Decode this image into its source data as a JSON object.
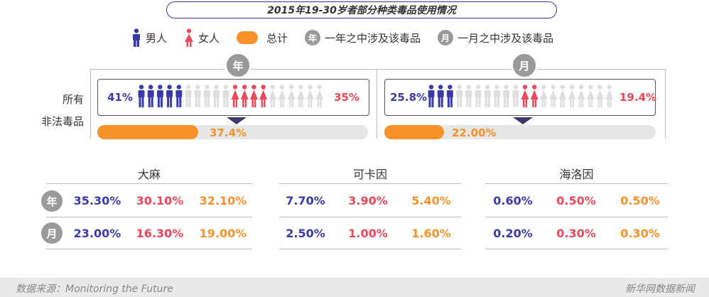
{
  "title": "2015年19-30岁者部分种类毒品使用情况",
  "legend": {
    "male": "男人",
    "female": "女人",
    "total": "总计",
    "year_badge": "年",
    "year_text": "一年之中涉及该毒品",
    "month_badge": "月",
    "month_text": "一月之中涉及该毒品"
  },
  "colors": {
    "male": "#3a3aa8",
    "female": "#e9495a",
    "total": "#f7922a",
    "inactive": "#dedede"
  },
  "row_label_1": "所有",
  "row_label_2": "非法毒品",
  "chart_data": [
    {
      "type": "bar",
      "title": "所有非法毒品",
      "period": "年",
      "male_label": "41%",
      "female_label": "35%",
      "total_label": "37.4%",
      "male": 41,
      "female": 35,
      "total": 37.4,
      "ylim": [
        0,
        100
      ]
    },
    {
      "type": "bar",
      "period": "月",
      "male_label": "25.8%",
      "female_label": "19.4%",
      "total_label": "22.00%",
      "male": 25.8,
      "female": 19.4,
      "total": 22.0,
      "ylim": [
        0,
        100
      ]
    },
    {
      "type": "table",
      "columns": [
        "大麻",
        "可卡因",
        "海洛因"
      ],
      "rows": [
        {
          "badge": "年",
          "values": [
            [
              "35.30%",
              "30.10%",
              "32.10%"
            ],
            [
              "7.70%",
              "3.90%",
              "5.40%"
            ],
            [
              "0.60%",
              "0.50%",
              "0.50%"
            ]
          ]
        },
        {
          "badge": "月",
          "values": [
            [
              "23.00%",
              "16.30%",
              "19.00%"
            ],
            [
              "2.50%",
              "1.00%",
              "1.60%"
            ],
            [
              "0.20%",
              "0.30%",
              "0.30%"
            ]
          ]
        }
      ]
    }
  ],
  "footer": {
    "source": "数据来源：Monitoring the Future",
    "brand": "新华网数据新闻"
  }
}
